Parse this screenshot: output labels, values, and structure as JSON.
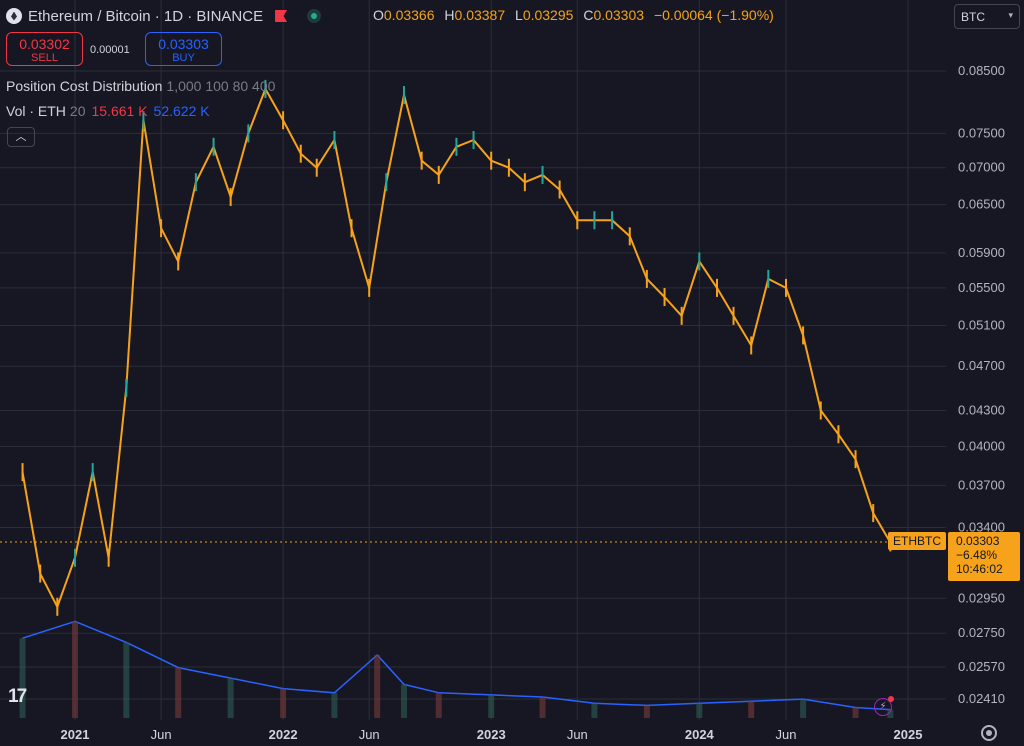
{
  "header": {
    "title": "Ethereum / Bitcoin · 1D · BINANCE",
    "open_label": "O",
    "open": "0.03366",
    "high_label": "H",
    "high": "0.03387",
    "low_label": "L",
    "low": "0.03295",
    "close_label": "C",
    "close": "0.03303",
    "change": "−0.00064 (−1.90%)"
  },
  "trade": {
    "sell_price": "0.03302",
    "sell_label": "SELL",
    "spread": "0.00001",
    "buy_price": "0.03303",
    "buy_label": "BUY"
  },
  "indicators": {
    "pcd_label": "Position Cost Distribution",
    "pcd_params": "1,000 100 80 400",
    "vol_label": "Vol · ETH",
    "vol_len": "20",
    "vol_value": "15.661 K",
    "vol_ma": "52.622 K"
  },
  "currency_select": "BTC",
  "price_tag": {
    "symbol": "ETHBTC",
    "price": "0.03303",
    "change": "−6.48%",
    "countdown": "10:46:02"
  },
  "tv_logo": "17",
  "colors": {
    "background": "#161722",
    "candle": "#f7a21b",
    "candle_up": "#26a69a",
    "volume_ma": "#2962ff",
    "grid": "#2a2e39"
  },
  "chart_data": {
    "type": "line",
    "symbol": "ETHBTC",
    "x_ticks": [
      "2021",
      "Jun",
      "2022",
      "Jun",
      "2023",
      "Jun",
      "2024",
      "Jun",
      "2025"
    ],
    "y_ticks": [
      "0.08500",
      "0.07500",
      "0.07000",
      "0.06500",
      "0.05900",
      "0.05500",
      "0.05100",
      "0.04700",
      "0.04300",
      "0.04000",
      "0.03700",
      "0.03400",
      "0.02950",
      "0.02750",
      "0.02570",
      "0.02410"
    ],
    "y_tick_values": [
      0.085,
      0.075,
      0.07,
      0.065,
      0.059,
      0.055,
      0.051,
      0.047,
      0.043,
      0.04,
      0.037,
      0.034,
      0.0295,
      0.0275,
      0.0257,
      0.0241
    ],
    "scale": "log",
    "price_series": {
      "name": "ETHBTC",
      "x": [
        "2020-10-01",
        "2020-11-01",
        "2020-12-01",
        "2021-01-01",
        "2021-02-01",
        "2021-03-01",
        "2021-04-01",
        "2021-05-01",
        "2021-06-01",
        "2021-07-01",
        "2021-08-01",
        "2021-09-01",
        "2021-10-01",
        "2021-11-01",
        "2021-12-01",
        "2022-01-01",
        "2022-02-01",
        "2022-03-01",
        "2022-04-01",
        "2022-05-01",
        "2022-06-01",
        "2022-07-01",
        "2022-08-01",
        "2022-09-01",
        "2022-10-01",
        "2022-11-01",
        "2022-12-01",
        "2023-01-01",
        "2023-02-01",
        "2023-03-01",
        "2023-04-01",
        "2023-05-01",
        "2023-06-01",
        "2023-07-01",
        "2023-08-01",
        "2023-09-01",
        "2023-10-01",
        "2023-11-01",
        "2023-12-01",
        "2024-01-01",
        "2024-02-01",
        "2024-03-01",
        "2024-04-01",
        "2024-05-01",
        "2024-06-01",
        "2024-07-01",
        "2024-08-01",
        "2024-09-01",
        "2024-10-01",
        "2024-11-01",
        "2024-12-01"
      ],
      "y": [
        0.038,
        0.031,
        0.029,
        0.032,
        0.038,
        0.032,
        0.045,
        0.077,
        0.062,
        0.058,
        0.068,
        0.073,
        0.066,
        0.075,
        0.082,
        0.077,
        0.072,
        0.07,
        0.074,
        0.062,
        0.055,
        0.068,
        0.081,
        0.071,
        0.069,
        0.073,
        0.074,
        0.071,
        0.07,
        0.068,
        0.069,
        0.067,
        0.063,
        0.063,
        0.063,
        0.061,
        0.056,
        0.054,
        0.052,
        0.058,
        0.055,
        0.052,
        0.049,
        0.056,
        0.055,
        0.05,
        0.043,
        0.041,
        0.039,
        0.035,
        0.033
      ]
    },
    "volume_series": {
      "name": "Vol · ETH",
      "x": [
        "2020-10-01",
        "2021-01-01",
        "2021-04-01",
        "2021-07-01",
        "2021-10-01",
        "2022-01-01",
        "2022-04-01",
        "2022-06-15",
        "2022-08-01",
        "2022-10-01",
        "2023-01-01",
        "2023-04-01",
        "2023-07-01",
        "2023-10-01",
        "2024-01-01",
        "2024-04-01",
        "2024-07-01",
        "2024-10-01",
        "2024-12-01"
      ],
      "ma": [
        190,
        230,
        180,
        120,
        95,
        70,
        60,
        150,
        80,
        60,
        55,
        50,
        35,
        30,
        35,
        40,
        45,
        25,
        20
      ]
    },
    "last_price": 0.03303,
    "last_change": "−6.48%"
  }
}
